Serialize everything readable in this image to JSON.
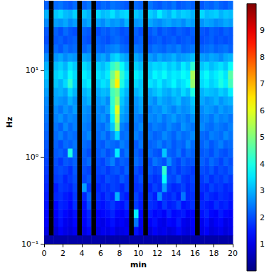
{
  "chart_data": {
    "type": "heatmap",
    "x_label": "min",
    "y_label": "Hz",
    "log": "y",
    "xlim": [
      0,
      20
    ],
    "xticks": [
      0,
      2,
      4,
      6,
      8,
      10,
      12,
      14,
      16,
      18,
      20
    ],
    "ylim": [
      0.1,
      63.1
    ],
    "yticks": [
      {
        "value": 0.1,
        "label": "10⁻¹"
      },
      {
        "value": 1,
        "label": "10⁰"
      },
      {
        "value": 10,
        "label": "10¹"
      }
    ],
    "x": [
      0,
      0.5,
      1,
      1.5,
      2,
      2.5,
      3,
      3.5,
      4,
      4.5,
      5,
      5.5,
      6,
      6.5,
      7,
      7.5,
      8,
      8.5,
      9,
      9.5,
      10,
      10.5,
      11,
      11.5,
      12,
      12.5,
      13,
      13.5,
      14,
      14.5,
      15,
      15.5,
      16,
      16.5,
      17,
      17.5,
      18,
      18.5,
      19,
      19.5,
      20
    ],
    "y": [
      0.1,
      0.126,
      0.158,
      0.2,
      0.251,
      0.316,
      0.398,
      0.501,
      0.631,
      0.794,
      1,
      1.26,
      1.58,
      2,
      2.51,
      3.16,
      3.98,
      5.01,
      6.31,
      7.94,
      10,
      12.6,
      15.8,
      20,
      25.1,
      31.6,
      39.8,
      50.1,
      63.1
    ],
    "values": [
      [
        0.4,
        0.4,
        0.4,
        0.4,
        0.4,
        0.4,
        0.4,
        0.4,
        0.4,
        0.4,
        0.4,
        0.4,
        0.4,
        0.4,
        0.4,
        0.4,
        0.4,
        0.4,
        0.4,
        0.4,
        0.4,
        0.4,
        0.4,
        0.4,
        0.4,
        0.4,
        0.4,
        0.4,
        0.4,
        0.4,
        0.4,
        0.4,
        0.4,
        0.4,
        0.4,
        0.4,
        0.4,
        0.4,
        0.4,
        0.4
      ],
      [
        1.0,
        null,
        0.8,
        1.2,
        1.0,
        0.9,
        1.1,
        null,
        1.0,
        1.3,
        null,
        0.9,
        1.1,
        1.0,
        1.2,
        0.9,
        1.0,
        1.1,
        null,
        1.4,
        1.0,
        null,
        0.9,
        1.2,
        1.0,
        1.1,
        0.9,
        1.0,
        1.3,
        1.0,
        0.9,
        1.1,
        null,
        1.0,
        1.2,
        0.9,
        1.0,
        1.1,
        0.9,
        1.0
      ],
      [
        1.2,
        null,
        1.0,
        1.4,
        1.1,
        1.0,
        1.3,
        null,
        1.2,
        1.5,
        null,
        1.1,
        1.0,
        1.2,
        1.4,
        1.1,
        1.2,
        1.0,
        null,
        2.4,
        1.1,
        null,
        1.2,
        1.4,
        1.1,
        1.0,
        1.3,
        1.2,
        1.5,
        1.1,
        1.0,
        1.2,
        null,
        1.1,
        1.4,
        1.0,
        1.2,
        1.3,
        1.0,
        1.1
      ],
      [
        1.3,
        null,
        1.2,
        1.5,
        1.3,
        1.1,
        1.4,
        null,
        1.3,
        1.6,
        null,
        1.2,
        1.3,
        1.4,
        1.6,
        1.3,
        1.2,
        1.4,
        null,
        3.6,
        1.3,
        null,
        1.5,
        1.3,
        1.4,
        1.2,
        1.6,
        1.3,
        1.4,
        1.5,
        1.2,
        1.3,
        null,
        1.4,
        1.6,
        1.3,
        1.2,
        1.5,
        1.3,
        1.2
      ],
      [
        1.4,
        null,
        1.3,
        1.6,
        1.5,
        1.3,
        1.7,
        null,
        1.4,
        2.0,
        null,
        1.5,
        1.4,
        1.6,
        1.8,
        1.5,
        1.4,
        1.7,
        null,
        1.8,
        1.5,
        null,
        1.7,
        1.6,
        1.4,
        1.8,
        1.5,
        1.6,
        1.9,
        1.4,
        1.5,
        1.7,
        null,
        1.6,
        1.5,
        1.4,
        1.7,
        1.5,
        1.6,
        1.4
      ],
      [
        1.5,
        null,
        1.6,
        1.7,
        1.5,
        1.4,
        1.8,
        null,
        1.6,
        2.2,
        null,
        1.7,
        1.5,
        1.8,
        1.6,
        3.0,
        1.7,
        1.5,
        null,
        1.9,
        1.6,
        null,
        1.8,
        1.5,
        2.6,
        1.7,
        1.6,
        1.8,
        1.5,
        2.4,
        1.6,
        1.7,
        null,
        1.5,
        1.8,
        1.6,
        1.5,
        1.7,
        1.6,
        1.5
      ],
      [
        1.6,
        null,
        1.5,
        1.8,
        1.7,
        1.6,
        1.9,
        null,
        2.8,
        1.8,
        null,
        1.6,
        1.8,
        1.7,
        1.9,
        1.8,
        1.6,
        1.9,
        null,
        1.7,
        1.8,
        null,
        1.6,
        1.9,
        1.7,
        2.8,
        1.8,
        1.6,
        1.7,
        1.9,
        1.6,
        1.8,
        null,
        1.7,
        1.6,
        1.9,
        1.7,
        1.8,
        1.6,
        1.7
      ],
      [
        1.7,
        null,
        1.8,
        1.9,
        1.6,
        1.8,
        2.0,
        null,
        1.9,
        2.1,
        null,
        1.8,
        1.7,
        2.0,
        1.9,
        1.8,
        2.1,
        1.9,
        null,
        1.8,
        2.0,
        null,
        1.9,
        1.7,
        1.8,
        3.8,
        2.0,
        1.9,
        2.2,
        1.8,
        1.7,
        1.9,
        null,
        1.8,
        2.0,
        1.7,
        1.9,
        1.8,
        2.0,
        1.8
      ],
      [
        1.8,
        null,
        1.9,
        2.0,
        1.9,
        1.7,
        2.1,
        null,
        2.0,
        1.9,
        null,
        1.9,
        2.0,
        1.8,
        2.0,
        2.1,
        1.9,
        2.2,
        null,
        2.0,
        1.8,
        null,
        2.1,
        1.9,
        2.0,
        4.2,
        1.9,
        2.1,
        1.8,
        2.0,
        1.9,
        1.8,
        null,
        2.0,
        1.9,
        2.1,
        1.8,
        2.0,
        1.9,
        2.1
      ],
      [
        1.9,
        null,
        2.0,
        1.8,
        2.1,
        2.0,
        2.2,
        null,
        2.1,
        2.3,
        null,
        2.0,
        1.9,
        2.2,
        2.5,
        2.0,
        2.2,
        2.1,
        null,
        2.3,
        2.1,
        null,
        2.0,
        2.4,
        2.2,
        2.0,
        2.6,
        2.1,
        1.9,
        2.2,
        2.0,
        2.1,
        null,
        2.2,
        2.0,
        2.3,
        2.1,
        1.9,
        2.2,
        2.0
      ],
      [
        2.0,
        null,
        2.1,
        2.2,
        2.0,
        4.0,
        2.3,
        null,
        2.2,
        2.0,
        null,
        2.1,
        2.3,
        2.0,
        2.2,
        3.6,
        2.1,
        2.4,
        null,
        2.2,
        2.0,
        null,
        2.3,
        2.1,
        2.0,
        3.2,
        2.2,
        2.1,
        2.4,
        2.0,
        2.3,
        2.2,
        null,
        2.1,
        2.2,
        2.0,
        2.3,
        2.1,
        2.0,
        2.2
      ],
      [
        2.1,
        null,
        2.2,
        2.0,
        2.3,
        2.2,
        2.4,
        null,
        2.3,
        2.2,
        null,
        2.2,
        2.1,
        2.4,
        2.3,
        2.2,
        2.5,
        2.3,
        null,
        2.1,
        2.4,
        null,
        2.2,
        2.3,
        2.5,
        2.2,
        2.4,
        2.1,
        2.3,
        2.2,
        2.6,
        2.3,
        null,
        2.2,
        2.4,
        2.1,
        2.3,
        2.5,
        2.2,
        2.3
      ],
      [
        2.2,
        null,
        2.3,
        2.5,
        2.2,
        2.4,
        2.3,
        null,
        2.4,
        2.6,
        null,
        2.3,
        2.5,
        2.2,
        2.6,
        3.4,
        2.3,
        2.4,
        null,
        2.5,
        2.3,
        null,
        2.4,
        2.2,
        2.3,
        2.6,
        2.4,
        2.2,
        2.5,
        2.3,
        2.4,
        2.6,
        null,
        2.3,
        2.2,
        2.5,
        2.4,
        2.3,
        2.6,
        2.4
      ],
      [
        2.3,
        null,
        2.4,
        2.2,
        2.6,
        2.3,
        2.5,
        null,
        2.5,
        2.4,
        null,
        2.4,
        2.3,
        2.6,
        3.2,
        5.0,
        2.5,
        2.3,
        null,
        2.4,
        2.6,
        null,
        2.3,
        2.5,
        2.4,
        2.3,
        2.6,
        2.4,
        2.3,
        2.7,
        2.5,
        2.4,
        null,
        2.6,
        2.4,
        2.3,
        2.5,
        2.4,
        2.3,
        2.5
      ],
      [
        2.4,
        null,
        2.5,
        2.7,
        2.4,
        2.6,
        2.5,
        null,
        2.6,
        2.5,
        null,
        2.5,
        2.7,
        2.4,
        3.6,
        5.6,
        2.8,
        2.6,
        null,
        2.5,
        2.4,
        null,
        2.6,
        2.5,
        2.7,
        2.4,
        2.6,
        2.8,
        2.5,
        2.6,
        2.4,
        2.7,
        null,
        2.5,
        2.6,
        2.4,
        2.7,
        2.5,
        2.6,
        2.4
      ],
      [
        2.5,
        null,
        2.6,
        2.4,
        2.7,
        2.5,
        2.8,
        null,
        2.7,
        2.6,
        null,
        2.6,
        2.5,
        2.8,
        4.0,
        6.0,
        3.0,
        2.7,
        null,
        2.6,
        2.8,
        null,
        2.5,
        2.7,
        2.6,
        2.9,
        2.7,
        2.5,
        2.8,
        2.6,
        2.7,
        3.0,
        null,
        2.6,
        2.8,
        2.7,
        2.5,
        2.8,
        2.6,
        2.7
      ],
      [
        2.6,
        null,
        2.8,
        2.7,
        2.6,
        3.0,
        2.7,
        null,
        2.8,
        3.0,
        null,
        2.7,
        2.9,
        2.6,
        4.2,
        5.2,
        3.2,
        2.8,
        null,
        2.7,
        2.9,
        null,
        2.8,
        2.6,
        3.0,
        2.8,
        2.7,
        2.9,
        3.1,
        2.7,
        2.8,
        3.2,
        null,
        2.9,
        2.7,
        2.8,
        3.0,
        2.7,
        2.9,
        3.0
      ],
      [
        2.8,
        null,
        2.9,
        3.0,
        2.8,
        3.4,
        3.0,
        null,
        3.0,
        3.2,
        null,
        2.9,
        3.1,
        3.0,
        4.4,
        4.8,
        3.4,
        3.0,
        null,
        3.0,
        3.2,
        null,
        2.9,
        3.1,
        3.3,
        3.0,
        2.9,
        3.2,
        3.0,
        3.4,
        3.1,
        4.0,
        null,
        3.0,
        3.2,
        3.1,
        3.0,
        3.3,
        3.1,
        3.6
      ],
      [
        3.0,
        null,
        3.2,
        3.0,
        3.4,
        4.2,
        3.3,
        null,
        3.4,
        3.6,
        null,
        3.2,
        3.5,
        3.3,
        5.0,
        6.4,
        4.0,
        3.3,
        null,
        3.4,
        3.2,
        null,
        3.5,
        3.3,
        3.6,
        3.2,
        3.4,
        3.7,
        3.3,
        3.5,
        3.8,
        5.2,
        null,
        3.4,
        3.6,
        3.3,
        3.5,
        4.0,
        3.6,
        4.4
      ],
      [
        3.2,
        null,
        3.3,
        3.5,
        3.2,
        3.8,
        3.4,
        null,
        3.6,
        3.4,
        null,
        3.5,
        3.3,
        3.6,
        4.8,
        5.8,
        4.2,
        3.5,
        null,
        3.6,
        3.4,
        null,
        3.3,
        3.7,
        3.5,
        3.8,
        3.4,
        3.6,
        3.5,
        3.8,
        3.6,
        5.4,
        null,
        3.5,
        3.8,
        3.4,
        3.6,
        3.9,
        3.5,
        4.6
      ],
      [
        3.0,
        null,
        3.1,
        3.3,
        3.0,
        3.5,
        3.2,
        null,
        3.4,
        3.2,
        null,
        3.3,
        3.1,
        3.4,
        4.2,
        4.6,
        3.8,
        3.2,
        null,
        3.3,
        3.1,
        null,
        3.2,
        3.4,
        3.3,
        3.5,
        3.2,
        3.4,
        3.1,
        3.6,
        3.3,
        4.2,
        null,
        3.2,
        3.4,
        3.1,
        3.3,
        3.5,
        3.2,
        3.8
      ],
      [
        2.6,
        null,
        2.7,
        2.9,
        2.6,
        2.8,
        2.7,
        null,
        2.9,
        2.8,
        null,
        2.7,
        2.9,
        2.6,
        3.2,
        3.4,
        3.0,
        2.8,
        null,
        2.9,
        2.7,
        null,
        2.8,
        2.6,
        2.9,
        2.7,
        2.8,
        3.0,
        2.7,
        2.8,
        2.9,
        3.1,
        null,
        2.8,
        2.7,
        2.9,
        2.8,
        2.6,
        2.9,
        3.0
      ],
      [
        2.2,
        null,
        2.3,
        2.1,
        2.4,
        2.2,
        2.3,
        null,
        2.2,
        2.4,
        null,
        2.3,
        2.2,
        2.4,
        2.5,
        2.6,
        2.3,
        2.2,
        null,
        2.4,
        2.3,
        null,
        2.2,
        2.4,
        2.3,
        2.2,
        2.4,
        2.3,
        2.5,
        2.2,
        2.3,
        2.4,
        null,
        2.2,
        2.3,
        2.4,
        2.2,
        2.3,
        2.4,
        2.2
      ],
      [
        2.0,
        null,
        2.1,
        2.2,
        2.0,
        2.1,
        2.2,
        null,
        2.1,
        2.0,
        null,
        2.2,
        2.1,
        2.0,
        2.2,
        2.3,
        2.1,
        2.0,
        null,
        2.1,
        2.2,
        null,
        2.0,
        2.1,
        2.2,
        2.0,
        2.1,
        2.2,
        2.0,
        2.1,
        2.2,
        2.1,
        null,
        2.0,
        2.1,
        2.2,
        2.0,
        2.1,
        2.0,
        2.1
      ],
      [
        2.1,
        null,
        2.2,
        2.0,
        2.3,
        2.1,
        2.0,
        null,
        2.2,
        2.1,
        null,
        2.0,
        2.2,
        2.1,
        2.3,
        2.2,
        2.0,
        2.1,
        null,
        2.2,
        2.0,
        null,
        2.1,
        2.3,
        2.0,
        2.2,
        2.1,
        2.0,
        2.2,
        2.1,
        2.0,
        2.2,
        null,
        2.1,
        2.0,
        2.2,
        2.1,
        2.0,
        2.2,
        2.1
      ],
      [
        2.6,
        null,
        2.8,
        2.7,
        2.9,
        2.6,
        2.8,
        null,
        2.7,
        2.9,
        null,
        2.8,
        2.6,
        2.9,
        2.7,
        2.8,
        2.6,
        3.0,
        null,
        2.7,
        2.8,
        null,
        2.9,
        2.7,
        2.6,
        2.8,
        2.9,
        2.7,
        2.8,
        2.6,
        2.9,
        2.8,
        null,
        2.7,
        2.9,
        2.8,
        2.6,
        2.7,
        2.9,
        2.8
      ],
      [
        3.0,
        null,
        3.2,
        3.4,
        3.1,
        3.0,
        3.3,
        null,
        3.2,
        3.0,
        null,
        3.4,
        3.1,
        3.2,
        3.5,
        3.1,
        3.3,
        3.4,
        null,
        3.2,
        3.0,
        null,
        3.3,
        3.1,
        3.6,
        3.2,
        3.0,
        3.4,
        3.1,
        3.3,
        3.2,
        3.0,
        null,
        3.4,
        3.1,
        3.2,
        3.3,
        3.0,
        3.2,
        3.1
      ],
      [
        2.2,
        null,
        2.3,
        2.4,
        2.2,
        2.1,
        2.3,
        null,
        2.2,
        2.4,
        null,
        2.1,
        2.3,
        2.2,
        2.4,
        2.3,
        2.2,
        2.1,
        null,
        2.3,
        2.2,
        null,
        2.4,
        2.2,
        2.1,
        2.3,
        2.2,
        2.4,
        2.1,
        2.2,
        2.3,
        2.2,
        null,
        2.1,
        2.3,
        2.2,
        2.4,
        2.2,
        2.1,
        2.3
      ]
    ],
    "colorbar": {
      "range": [
        0,
        10
      ],
      "ticks": [
        1,
        2,
        3,
        4,
        5,
        6,
        7,
        8,
        9
      ]
    }
  }
}
